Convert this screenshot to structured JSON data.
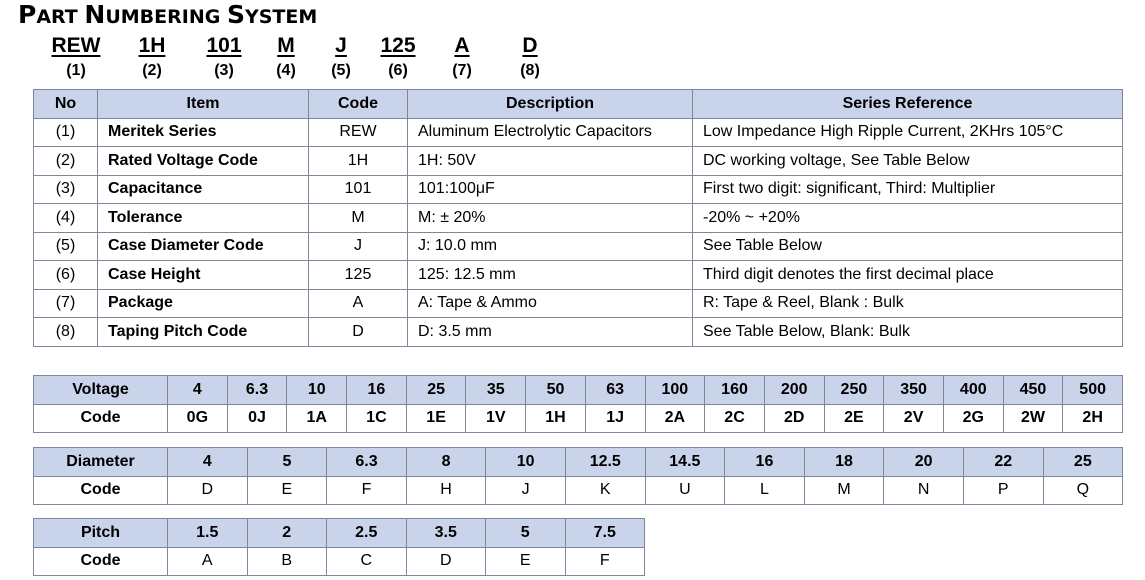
{
  "title": {
    "p1": "P",
    "p2": "ART ",
    "n1": "N",
    "n2": "UMBERING ",
    "s1": "S",
    "s2": "YSTEM"
  },
  "part_number": [
    {
      "code": "REW",
      "index": "(1)"
    },
    {
      "code": "1H",
      "index": "(2)"
    },
    {
      "code": "101",
      "index": "(3)"
    },
    {
      "code": "M",
      "index": "(4)"
    },
    {
      "code": "J",
      "index": "(5)"
    },
    {
      "code": "125",
      "index": "(6)"
    },
    {
      "code": "A",
      "index": "(7)"
    },
    {
      "code": "D",
      "index": "(8)"
    }
  ],
  "main_table": {
    "headers": [
      "No",
      "Item",
      "Code",
      "Description",
      "Series Reference"
    ],
    "rows": [
      [
        "(1)",
        "Meritek Series",
        "REW",
        "Aluminum Electrolytic Capacitors",
        "Low Impedance High Ripple Current, 2KHrs 105°C"
      ],
      [
        "(2)",
        "Rated Voltage Code",
        "1H",
        "1H: 50V",
        "DC working voltage, See Table Below"
      ],
      [
        "(3)",
        "Capacitance",
        "101",
        "101:100μF",
        "First two digit: significant, Third: Multiplier"
      ],
      [
        "(4)",
        "Tolerance",
        "M",
        "M: ± 20%",
        "-20% ~ +20%"
      ],
      [
        "(5)",
        "Case Diameter Code",
        "J",
        "J: 10.0 mm",
        "See Table Below"
      ],
      [
        "(6)",
        "Case Height",
        "125",
        "125: 12.5 mm",
        "Third digit denotes the first decimal place"
      ],
      [
        "(7)",
        "Package",
        "A",
        "A: Tape & Ammo",
        "R: Tape & Reel, Blank : Bulk"
      ],
      [
        "(8)",
        "Taping Pitch Code",
        "D",
        "D: 3.5 mm",
        "See Table Below, Blank: Bulk"
      ]
    ]
  },
  "voltage_table": {
    "row1_label": "Voltage",
    "row2_label": "Code",
    "values": [
      "4",
      "6.3",
      "10",
      "16",
      "25",
      "35",
      "50",
      "63",
      "100",
      "160",
      "200",
      "250",
      "350",
      "400",
      "450",
      "500"
    ],
    "codes": [
      "0G",
      "0J",
      "1A",
      "1C",
      "1E",
      "1V",
      "1H",
      "1J",
      "2A",
      "2C",
      "2D",
      "2E",
      "2V",
      "2G",
      "2W",
      "2H"
    ]
  },
  "diameter_table": {
    "row1_label": "Diameter",
    "row2_label": "Code",
    "values": [
      "4",
      "5",
      "6.3",
      "8",
      "10",
      "12.5",
      "14.5",
      "16",
      "18",
      "20",
      "22",
      "25"
    ],
    "codes": [
      "D",
      "E",
      "F",
      "H",
      "J",
      "K",
      "U",
      "L",
      "M",
      "N",
      "P",
      "Q"
    ]
  },
  "pitch_table": {
    "row1_label": "Pitch",
    "row2_label": "Code",
    "values": [
      "1.5",
      "2",
      "2.5",
      "3.5",
      "5",
      "7.5"
    ],
    "codes": [
      "A",
      "B",
      "C",
      "D",
      "E",
      "F"
    ]
  }
}
